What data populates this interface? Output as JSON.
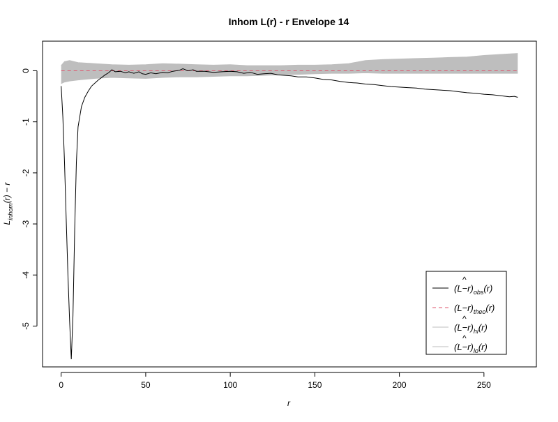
{
  "chart_data": {
    "type": "line",
    "title": "Inhom L(r) - r Envelope 14",
    "xlabel": "r",
    "ylabel": "L_inhom(r) − r",
    "xlim": [
      -11,
      281
    ],
    "ylim": [
      -5.8,
      0.58
    ],
    "x_ticks": [
      0,
      50,
      100,
      150,
      200,
      250
    ],
    "y_ticks": [
      0,
      -1,
      -2,
      -3,
      -4,
      -5
    ],
    "grid": false,
    "legend_position": "bottom-right",
    "series": [
      {
        "name": "(L^−r)obs(r)",
        "role": "observed",
        "style": "solid",
        "color": "#000000",
        "points": [
          [
            0,
            -0.3
          ],
          [
            1,
            -0.9
          ],
          [
            2,
            -1.8
          ],
          [
            3,
            -2.9
          ],
          [
            4,
            -4.0
          ],
          [
            5,
            -4.9
          ],
          [
            6,
            -5.65
          ],
          [
            7,
            -4.8
          ],
          [
            8,
            -3.1
          ],
          [
            9,
            -1.8
          ],
          [
            10,
            -1.1
          ],
          [
            12,
            -0.7
          ],
          [
            14,
            -0.52
          ],
          [
            16,
            -0.4
          ],
          [
            18,
            -0.3
          ],
          [
            20,
            -0.24
          ],
          [
            22,
            -0.18
          ],
          [
            24,
            -0.13
          ],
          [
            26,
            -0.08
          ],
          [
            28,
            -0.04
          ],
          [
            30,
            0.02
          ],
          [
            32,
            -0.02
          ],
          [
            35,
            -0.01
          ],
          [
            38,
            -0.04
          ],
          [
            40,
            -0.02
          ],
          [
            43,
            -0.05
          ],
          [
            46,
            -0.02
          ],
          [
            48,
            -0.06
          ],
          [
            50,
            -0.07
          ],
          [
            53,
            -0.04
          ],
          [
            56,
            -0.06
          ],
          [
            60,
            -0.03
          ],
          [
            63,
            -0.04
          ],
          [
            66,
            -0.01
          ],
          [
            70,
            0.01
          ],
          [
            72,
            0.04
          ],
          [
            75,
            0.0
          ],
          [
            78,
            0.02
          ],
          [
            80,
            -0.01
          ],
          [
            85,
            -0.01
          ],
          [
            90,
            -0.03
          ],
          [
            95,
            -0.02
          ],
          [
            100,
            -0.01
          ],
          [
            104,
            -0.02
          ],
          [
            108,
            -0.05
          ],
          [
            112,
            -0.03
          ],
          [
            116,
            -0.07
          ],
          [
            120,
            -0.06
          ],
          [
            124,
            -0.05
          ],
          [
            128,
            -0.08
          ],
          [
            132,
            -0.09
          ],
          [
            136,
            -0.1
          ],
          [
            140,
            -0.12
          ],
          [
            145,
            -0.12
          ],
          [
            150,
            -0.14
          ],
          [
            155,
            -0.17
          ],
          [
            160,
            -0.18
          ],
          [
            165,
            -0.21
          ],
          [
            170,
            -0.23
          ],
          [
            175,
            -0.24
          ],
          [
            180,
            -0.26
          ],
          [
            185,
            -0.27
          ],
          [
            190,
            -0.29
          ],
          [
            195,
            -0.31
          ],
          [
            200,
            -0.32
          ],
          [
            205,
            -0.33
          ],
          [
            210,
            -0.34
          ],
          [
            215,
            -0.36
          ],
          [
            220,
            -0.37
          ],
          [
            225,
            -0.38
          ],
          [
            230,
            -0.39
          ],
          [
            235,
            -0.41
          ],
          [
            240,
            -0.43
          ],
          [
            245,
            -0.44
          ],
          [
            250,
            -0.46
          ],
          [
            255,
            -0.47
          ],
          [
            260,
            -0.49
          ],
          [
            265,
            -0.51
          ],
          [
            268,
            -0.5
          ],
          [
            270,
            -0.52
          ]
        ]
      },
      {
        "name": "(L−r)theo(r)",
        "role": "theoretical",
        "style": "dashed",
        "color": "#DF536B",
        "points": [
          [
            0,
            0
          ],
          [
            270,
            0
          ]
        ]
      },
      {
        "name": "(L^−r)hi(r)",
        "role": "envelope-upper",
        "style": "solid",
        "color": "#BEBEBE",
        "points": [
          [
            0,
            0.1
          ],
          [
            2,
            0.18
          ],
          [
            5,
            0.2
          ],
          [
            10,
            0.16
          ],
          [
            20,
            0.14
          ],
          [
            30,
            0.12
          ],
          [
            40,
            0.11
          ],
          [
            50,
            0.12
          ],
          [
            60,
            0.14
          ],
          [
            70,
            0.13
          ],
          [
            80,
            0.12
          ],
          [
            90,
            0.11
          ],
          [
            100,
            0.12
          ],
          [
            110,
            0.1
          ],
          [
            120,
            0.1
          ],
          [
            130,
            0.1
          ],
          [
            140,
            0.11
          ],
          [
            150,
            0.11
          ],
          [
            160,
            0.12
          ],
          [
            170,
            0.14
          ],
          [
            180,
            0.2
          ],
          [
            190,
            0.22
          ],
          [
            200,
            0.23
          ],
          [
            210,
            0.24
          ],
          [
            220,
            0.25
          ],
          [
            230,
            0.26
          ],
          [
            240,
            0.27
          ],
          [
            250,
            0.3
          ],
          [
            260,
            0.32
          ],
          [
            270,
            0.34
          ]
        ]
      },
      {
        "name": "(L^−r)lo(r)",
        "role": "envelope-lower",
        "style": "solid",
        "color": "#BEBEBE",
        "points": [
          [
            0,
            -0.25
          ],
          [
            2,
            -0.22
          ],
          [
            5,
            -0.2
          ],
          [
            10,
            -0.18
          ],
          [
            20,
            -0.15
          ],
          [
            30,
            -0.13
          ],
          [
            40,
            -0.14
          ],
          [
            50,
            -0.15
          ],
          [
            60,
            -0.13
          ],
          [
            70,
            -0.12
          ],
          [
            80,
            -0.12
          ],
          [
            90,
            -0.11
          ],
          [
            100,
            -0.1
          ],
          [
            110,
            -0.1
          ],
          [
            120,
            -0.09
          ],
          [
            130,
            -0.08
          ],
          [
            140,
            -0.07
          ],
          [
            150,
            -0.06
          ],
          [
            160,
            -0.05
          ],
          [
            170,
            -0.05
          ],
          [
            180,
            -0.04
          ],
          [
            190,
            -0.05
          ],
          [
            200,
            -0.05
          ],
          [
            210,
            -0.05
          ],
          [
            220,
            -0.05
          ],
          [
            230,
            -0.05
          ],
          [
            240,
            -0.05
          ],
          [
            250,
            -0.05
          ],
          [
            260,
            -0.05
          ],
          [
            270,
            -0.05
          ]
        ]
      }
    ]
  }
}
